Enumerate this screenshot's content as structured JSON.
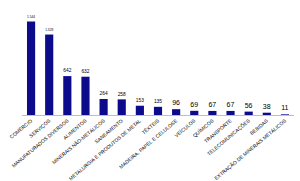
{
  "chart_data": {
    "type": "bar",
    "categories": [
      "COMÉRCIO",
      "SERVIÇOS",
      "MANUFATURADOS DIVERSOS",
      "ALIMENTOS",
      "MINERAIS NÃO-METÁLICOS",
      "SANEAMENTO",
      "METALURGIA E PRODUTOS DE METAL",
      "TÊXTEIS",
      "MADEIRA, PAPEL E CELULOSE",
      "VEÍCULOS",
      "QUÍMICOS",
      "TRANSPORTE",
      "TELECOMUNICAÇÕES",
      "BEBIDAS",
      "EXTRAÇÃO DE MINERAIS METÁLICOS"
    ],
    "values": [
      1544,
      1328,
      642,
      632,
      264,
      258,
      153,
      135,
      96,
      69,
      67,
      67,
      56,
      38,
      11
    ],
    "value_labels": [
      "1.544",
      "1.328",
      "642",
      "632",
      "264",
      "258",
      "153",
      "135",
      "96",
      "69",
      "67",
      "67",
      "56",
      "38",
      "11"
    ],
    "color": "#0b0b8c",
    "ylim": [
      0,
      1700
    ],
    "grid": false,
    "data_labels": true,
    "tick_labels": "x"
  }
}
